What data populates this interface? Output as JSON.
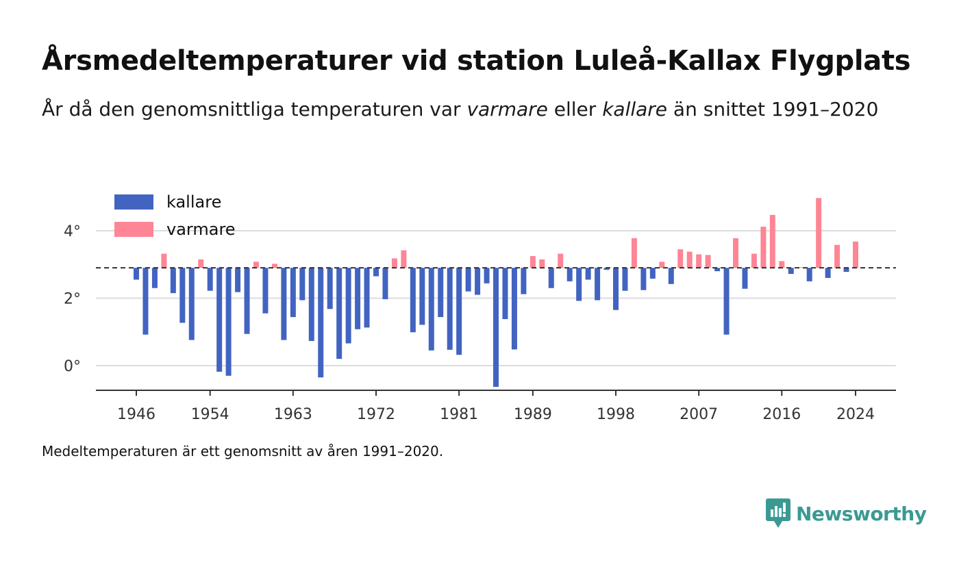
{
  "header": {
    "title": "Årsmedeltemperaturer vid station Luleå-Kallax Flygplats",
    "subtitle_parts": [
      "År då den genomsnittliga temperaturen var ",
      "varmare",
      " eller ",
      "kallare",
      " än snittet 1991–2020"
    ]
  },
  "footnote": "Medeltemperaturen är ett genomsnitt av åren 1991–2020.",
  "brand": {
    "name": "Newsworthy",
    "icon": "newsworthy-logo-icon",
    "color": "#3a9a93"
  },
  "chart_data": {
    "type": "bar",
    "reference_value": 2.9,
    "reference_style": "dashed",
    "ylim": [
      -0.75,
      5.0
    ],
    "xlim": [
      1941.5,
      2029.5
    ],
    "y_ticks": [
      0,
      2,
      4
    ],
    "y_tick_labels": [
      "0°",
      "2°",
      "4°"
    ],
    "x_ticks": [
      1946,
      1954,
      1963,
      1972,
      1981,
      1989,
      1998,
      2007,
      2016,
      2024
    ],
    "x_tick_labels": [
      "1946",
      "1954",
      "1963",
      "1972",
      "1981",
      "1989",
      "1998",
      "2007",
      "2016",
      "2024"
    ],
    "grid": true,
    "legend_position": "top-left",
    "legend": [
      {
        "label": "kallare",
        "color": "#4264c1"
      },
      {
        "label": "varmare",
        "color": "#fe8595"
      }
    ],
    "colors": {
      "colder": "#4264c1",
      "warmer": "#fe8595"
    },
    "years": [
      1946,
      1947,
      1948,
      1949,
      1950,
      1951,
      1952,
      1953,
      1954,
      1955,
      1956,
      1957,
      1958,
      1959,
      1960,
      1961,
      1962,
      1963,
      1964,
      1965,
      1966,
      1967,
      1968,
      1969,
      1970,
      1971,
      1972,
      1973,
      1974,
      1975,
      1976,
      1977,
      1978,
      1979,
      1980,
      1981,
      1982,
      1983,
      1984,
      1985,
      1986,
      1987,
      1988,
      1989,
      1990,
      1991,
      1992,
      1993,
      1994,
      1995,
      1996,
      1997,
      1998,
      1999,
      2000,
      2001,
      2002,
      2003,
      2004,
      2005,
      2006,
      2007,
      2008,
      2009,
      2010,
      2011,
      2012,
      2013,
      2014,
      2015,
      2016,
      2017,
      2018,
      2019,
      2020,
      2021,
      2022,
      2023,
      2024
    ],
    "values": [
      2.55,
      0.92,
      2.3,
      3.32,
      2.15,
      1.27,
      0.76,
      3.15,
      2.22,
      -0.18,
      -0.3,
      2.18,
      0.94,
      3.08,
      1.55,
      3.02,
      0.76,
      1.44,
      1.94,
      0.73,
      -0.35,
      1.68,
      0.2,
      0.66,
      1.08,
      1.13,
      2.65,
      1.97,
      3.18,
      3.42,
      0.99,
      1.21,
      0.45,
      1.44,
      0.47,
      0.32,
      2.2,
      2.1,
      2.44,
      -0.63,
      1.38,
      0.48,
      2.12,
      3.25,
      3.15,
      2.3,
      3.32,
      2.5,
      1.92,
      2.55,
      1.94,
      2.84,
      1.65,
      2.22,
      3.78,
      2.24,
      2.58,
      3.08,
      2.42,
      3.45,
      3.38,
      3.3,
      3.28,
      2.8,
      0.92,
      3.78,
      2.28,
      3.32,
      4.12,
      4.47,
      3.1,
      2.72,
      2.92,
      2.5,
      4.97,
      2.6,
      3.58,
      2.78,
      3.68
    ]
  }
}
